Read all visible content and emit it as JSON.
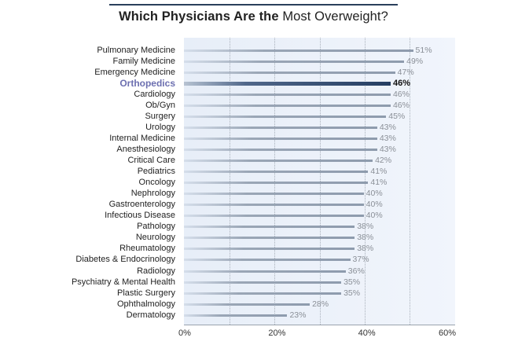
{
  "title": {
    "bold_part": "Which Physicians Are the",
    "regular_part": "Most Overweight?"
  },
  "chart_data": {
    "type": "bar",
    "orientation": "horizontal",
    "title": "Which Physicians Are the Most Overweight?",
    "xlabel": "",
    "ylabel": "",
    "xlim": [
      0,
      60
    ],
    "x_ticks": [
      "0%",
      "20%",
      "40%",
      "60%"
    ],
    "gridlines_at": [
      10,
      20,
      30,
      40,
      50
    ],
    "highlighted_category": "Orthopedics",
    "categories": [
      "Pulmonary Medicine",
      "Family Medicine",
      "Emergency Medicine",
      "Orthopedics",
      "Cardiology",
      "Ob/Gyn",
      "Surgery",
      "Urology",
      "Internal Medicine",
      "Anesthesiology",
      "Critical Care",
      "Pediatrics",
      "Oncology",
      "Nephrology",
      "Gastroenterology",
      "Infectious Disease",
      "Pathology",
      "Neurology",
      "Rheumatology",
      "Diabetes & Endocrinology",
      "Radiology",
      "Psychiatry & Mental Health",
      "Plastic Surgery",
      "Ophthalmology",
      "Dermatology"
    ],
    "values": [
      51,
      49,
      47,
      46,
      46,
      46,
      45,
      43,
      43,
      43,
      42,
      41,
      41,
      40,
      40,
      40,
      38,
      38,
      38,
      37,
      36,
      35,
      35,
      28,
      23
    ],
    "labels": [
      "51%",
      "49%",
      "47%",
      "46%",
      "46%",
      "46%",
      "45%",
      "43%",
      "43%",
      "43%",
      "42%",
      "41%",
      "41%",
      "40%",
      "40%",
      "40%",
      "38%",
      "38%",
      "38%",
      "37%",
      "36%",
      "35%",
      "35%",
      "28%",
      "23%"
    ]
  },
  "colors": {
    "bar": "#8e9bad",
    "highlight_bar": "#253e62",
    "highlight_label": "#6c6fb0",
    "plot_bg": "#e9f0f9",
    "title_rule": "#2a3f5c"
  }
}
